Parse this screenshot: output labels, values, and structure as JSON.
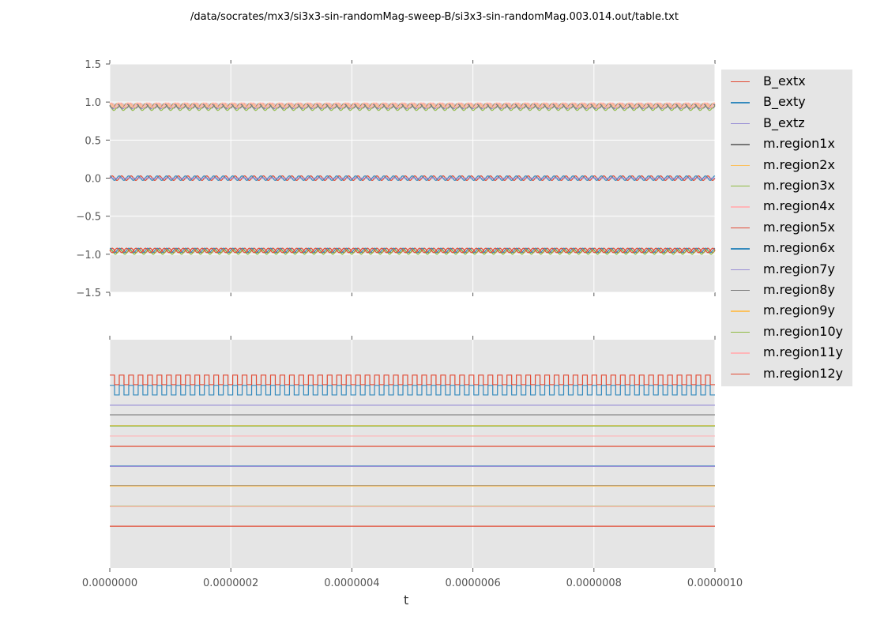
{
  "title": "/data/socrates/mx3/si3x3-sin-randomMag-sweep-B/si3x3-sin-randomMag.003.014.out/table.txt",
  "chart_data": [
    {
      "type": "line",
      "xlabel": "",
      "ylabel": "",
      "xlim": [
        0,
        1e-06
      ],
      "ylim": [
        -1.5,
        1.5
      ],
      "yticks": [
        "1.5",
        "1.0",
        "0.5",
        "0.0",
        "−0.5",
        "−1.0",
        "−1.5"
      ],
      "ytick_values": [
        1.5,
        1.0,
        0.5,
        0.0,
        -0.5,
        -1.0,
        -1.5
      ],
      "grid": true,
      "cycles": 64,
      "series": [
        {
          "name": "B_extx",
          "color": "#E24A33",
          "waveform": "sine",
          "mean": 0.0,
          "amplitude": 0.03,
          "phase": 0
        },
        {
          "name": "B_exty",
          "color": "#348ABD",
          "waveform": "sine",
          "mean": 0.0,
          "amplitude": 0.03,
          "phase": 1.57
        },
        {
          "name": "B_extz",
          "color": "#988ED5",
          "waveform": "constant",
          "mean": 0.0,
          "amplitude": 0,
          "phase": 0
        },
        {
          "name": "m.region1x",
          "color": "#777777",
          "waveform": "sine",
          "mean": 0.95,
          "amplitude": 0.03,
          "phase": 0
        },
        {
          "name": "m.region2x",
          "color": "#FBC15E",
          "waveform": "sine",
          "mean": 0.95,
          "amplitude": 0.03,
          "phase": 1.0
        },
        {
          "name": "m.region3x",
          "color": "#8EBA42",
          "waveform": "sine",
          "mean": 0.92,
          "amplitude": 0.03,
          "phase": 2.0
        },
        {
          "name": "m.region4x",
          "color": "#FFB5B8",
          "waveform": "sine",
          "mean": 0.96,
          "amplitude": 0.03,
          "phase": 0.5
        },
        {
          "name": "m.region5x",
          "color": "#E24A33",
          "waveform": "sine",
          "mean": -0.95,
          "amplitude": 0.03,
          "phase": 0
        },
        {
          "name": "m.region6x",
          "color": "#348ABD",
          "waveform": "sine",
          "mean": -0.95,
          "amplitude": 0.03,
          "phase": 1.5
        },
        {
          "name": "m.region7y",
          "color": "#988ED5",
          "waveform": "sine",
          "mean": 0.94,
          "amplitude": 0.03,
          "phase": 2.5
        },
        {
          "name": "m.region8y",
          "color": "#777777",
          "waveform": "sine",
          "mean": 0.95,
          "amplitude": 0.03,
          "phase": 3.0
        },
        {
          "name": "m.region9y",
          "color": "#FBC15E",
          "waveform": "sine",
          "mean": 0.96,
          "amplitude": 0.03,
          "phase": 2.2
        },
        {
          "name": "m.region10y",
          "color": "#8EBA42",
          "waveform": "sine",
          "mean": -0.97,
          "amplitude": 0.03,
          "phase": 1.0
        },
        {
          "name": "m.region11y",
          "color": "#FFB5B8",
          "waveform": "sine",
          "mean": 0.96,
          "amplitude": 0.03,
          "phase": 1.8
        },
        {
          "name": "m.region12y",
          "color": "#E24A33",
          "waveform": "sine",
          "mean": -0.95,
          "amplitude": 0.03,
          "phase": 3.0
        }
      ]
    },
    {
      "type": "line",
      "xlabel": "t",
      "ylabel": "",
      "xlim": [
        0,
        1e-06
      ],
      "xticks": [
        "0.0000000",
        "0.0000002",
        "0.0000004",
        "0.0000006",
        "0.0000008",
        "0.0000010"
      ],
      "xtick_values": [
        0,
        2e-07,
        4e-07,
        6e-07,
        8e-07,
        1e-06
      ],
      "ylim": [
        0,
        1
      ],
      "yticks": [],
      "grid": true,
      "cycles": 64,
      "series": [
        {
          "name": "B_extx",
          "color": "#E24A33",
          "waveform": "square",
          "mean": 0.824,
          "amplitude": 0.021
        },
        {
          "name": "B_exty",
          "color": "#348ABD",
          "waveform": "square",
          "mean": 0.779,
          "amplitude": 0.021
        },
        {
          "name": "B_extz",
          "color": "#988ED5",
          "waveform": "constant",
          "mean": 0.713,
          "amplitude": 0
        },
        {
          "name": "m.region1x",
          "color": "#777777",
          "waveform": "constant",
          "mean": 0.671,
          "amplitude": 0
        },
        {
          "name": "m.region2x",
          "color": "#FBC15E",
          "waveform": "constant",
          "mean": 0.624,
          "amplitude": 0
        },
        {
          "name": "m.region3x",
          "color": "#8EBA42",
          "waveform": "constant",
          "mean": 0.622,
          "amplitude": 0
        },
        {
          "name": "m.region4x",
          "color": "#FFB5B8",
          "waveform": "constant",
          "mean": 0.578,
          "amplitude": 0
        },
        {
          "name": "m.region5x",
          "color": "#E24A33",
          "waveform": "constant",
          "mean": 0.533,
          "amplitude": 0
        },
        {
          "name": "m.region6x",
          "color": "#348ABD",
          "waveform": "constant",
          "mean": 0.447,
          "amplitude": 0
        },
        {
          "name": "m.region7y",
          "color": "#988ED5",
          "waveform": "constant",
          "mean": 0.445,
          "amplitude": 0
        },
        {
          "name": "m.region8y",
          "color": "#777777",
          "waveform": "constant",
          "mean": 0.361,
          "amplitude": 0
        },
        {
          "name": "m.region9y",
          "color": "#FBC15E",
          "waveform": "constant",
          "mean": 0.359,
          "amplitude": 0
        },
        {
          "name": "m.region10y",
          "color": "#8EBA42",
          "waveform": "constant",
          "mean": 0.271,
          "amplitude": 0
        },
        {
          "name": "m.region11y",
          "color": "#FFB5B8",
          "waveform": "constant",
          "mean": 0.269,
          "amplitude": 0
        },
        {
          "name": "m.region12y",
          "color": "#E24A33",
          "waveform": "constant",
          "mean": 0.183,
          "amplitude": 0
        }
      ]
    }
  ],
  "legend": {
    "placement": "right",
    "items": [
      "B_extx",
      "B_exty",
      "B_extz",
      "m.region1x",
      "m.region2x",
      "m.region3x",
      "m.region4x",
      "m.region5x",
      "m.region6x",
      "m.region7y",
      "m.region8y",
      "m.region9y",
      "m.region10y",
      "m.region11y",
      "m.region12y"
    ]
  }
}
